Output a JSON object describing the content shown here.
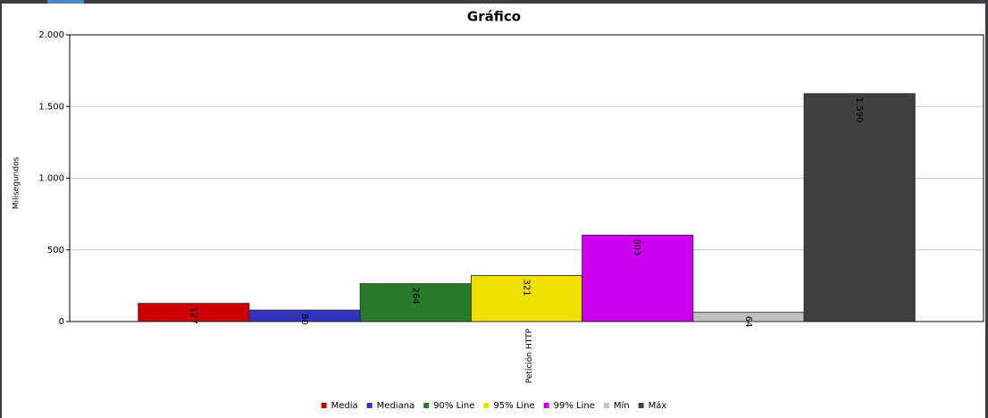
{
  "chart_data": {
    "type": "bar",
    "title": "Gráfico",
    "y_label": "Milisegundos",
    "categories": [
      "Petición HTTP"
    ],
    "series": [
      {
        "name": "Media",
        "color": "#cc0000",
        "values": [
          127
        ]
      },
      {
        "name": "Mediana",
        "color": "#3333bb",
        "values": [
          80
        ]
      },
      {
        "name": "90% Line",
        "color": "#2a7a2a",
        "values": [
          264
        ]
      },
      {
        "name": "95% Line",
        "color": "#f0e000",
        "values": [
          321
        ]
      },
      {
        "name": "99% Line",
        "color": "#cc00ee",
        "values": [
          603
        ]
      },
      {
        "name": "Mín",
        "color": "#c0c0c0",
        "values": [
          64
        ]
      },
      {
        "name": "Máx",
        "color": "#404040",
        "values": [
          1590
        ],
        "value_labels": [
          "1.590"
        ]
      }
    ],
    "ylim": [
      0,
      2000
    ],
    "yticks": [
      0,
      500,
      {
        "value": 1000,
        "label": "1.000"
      },
      {
        "value": 1500,
        "label": "1.500"
      },
      {
        "value": 2000,
        "label": "2.000"
      }
    ],
    "grid": true,
    "legend": "bottom"
  }
}
